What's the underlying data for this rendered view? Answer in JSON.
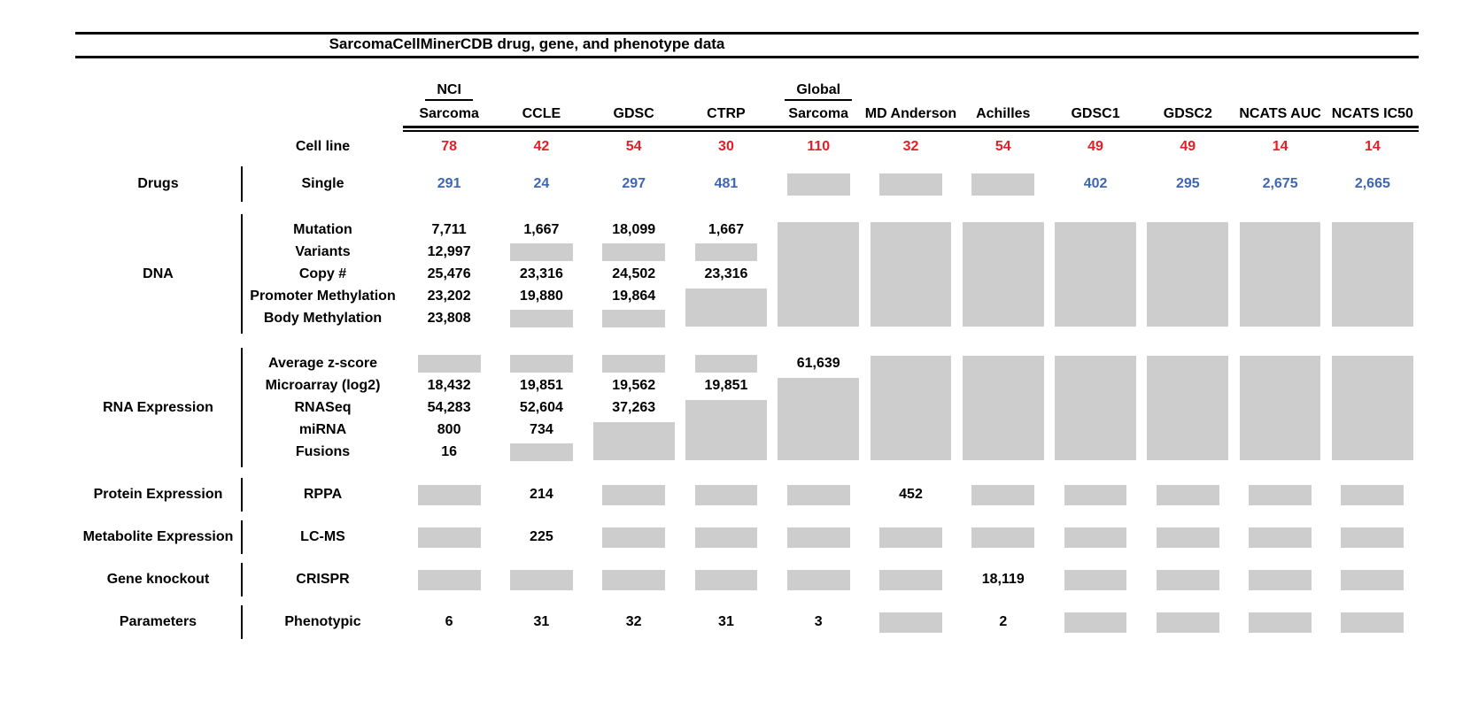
{
  "figure": {
    "title": "SarcomaCellMinerCDB drug, gene, and phenotype data"
  },
  "colors": {
    "red": "#e41e26",
    "blue": "#3e67b1",
    "gray": "#cdcdcd",
    "text": "#000000"
  },
  "header": {
    "cell_line_label": "Cell line",
    "columns": [
      {
        "top": "NCI",
        "label": "Sarcoma",
        "cell_lines": "78"
      },
      {
        "top": "",
        "label": "CCLE",
        "cell_lines": "42"
      },
      {
        "top": "",
        "label": "GDSC",
        "cell_lines": "54"
      },
      {
        "top": "",
        "label": "CTRP",
        "cell_lines": "30"
      },
      {
        "top": "Global",
        "label": "Sarcoma",
        "cell_lines": "110"
      },
      {
        "top": "",
        "label": "MD Anderson",
        "cell_lines": "32"
      },
      {
        "top": "",
        "label": "Achilles",
        "cell_lines": "54"
      },
      {
        "top": "",
        "label": "GDSC1",
        "cell_lines": "49"
      },
      {
        "top": "",
        "label": "GDSC2",
        "cell_lines": "49"
      },
      {
        "top": "",
        "label": "NCATS AUC",
        "cell_lines": "14"
      },
      {
        "top": "",
        "label": "NCATS IC50",
        "cell_lines": "14"
      }
    ]
  },
  "sections": [
    {
      "id": "drugs",
      "category": "Drugs",
      "value_color": "blue",
      "rows": [
        {
          "label": "Single",
          "cells": [
            "291",
            "24",
            "297",
            "481",
            "#1",
            "#1",
            "#1",
            "402",
            "295",
            "2,675",
            "2,665"
          ]
        }
      ]
    },
    {
      "id": "dna",
      "category": "DNA",
      "rows": [
        {
          "label": "Mutation",
          "cells": [
            "7,711",
            "1,667",
            "18,099",
            "1,667",
            "#5",
            "#5",
            "#5",
            "#5",
            "#5",
            "#5",
            "#5"
          ]
        },
        {
          "label": "Variants",
          "cells": [
            "12,997",
            "#1",
            "#1",
            "#1",
            "",
            "",
            "",
            "",
            "",
            "",
            ""
          ]
        },
        {
          "label": "Copy #",
          "cells": [
            "25,476",
            "23,316",
            "24,502",
            "23,316",
            "",
            "",
            "",
            "",
            "",
            "",
            ""
          ]
        },
        {
          "label": "Promoter Methylation",
          "cells": [
            "23,202",
            "19,880",
            "19,864",
            "#2",
            "",
            "",
            "",
            "",
            "",
            "",
            ""
          ]
        },
        {
          "label": "Body Methylation",
          "cells": [
            "23,808",
            "#1",
            "#1",
            "",
            "",
            "",
            "",
            "",
            "",
            "",
            ""
          ]
        }
      ]
    },
    {
      "id": "rna",
      "category": "RNA Expression",
      "rows": [
        {
          "label": "Average z-score",
          "cells": [
            "#1",
            "#1",
            "#1",
            "#1",
            "61,639",
            "#5",
            "#5",
            "#5",
            "#5",
            "#5",
            "#5"
          ]
        },
        {
          "label": "Microarray (log2)",
          "cells": [
            "18,432",
            "19,851",
            "19,562",
            "19,851",
            "#4",
            "",
            "",
            "",
            "",
            "",
            ""
          ]
        },
        {
          "label": "RNASeq",
          "cells": [
            "54,283",
            "52,604",
            "37,263",
            "#3",
            "",
            "",
            "",
            "",
            "",
            "",
            ""
          ]
        },
        {
          "label": "miRNA",
          "cells": [
            "800",
            "734",
            "#2",
            "",
            "",
            "",
            "",
            "",
            "",
            "",
            ""
          ]
        },
        {
          "label": "Fusions",
          "cells": [
            "16",
            "#1",
            "",
            "",
            "",
            "",
            "",
            "",
            "",
            "",
            ""
          ]
        }
      ]
    },
    {
      "id": "protein",
      "category": "Protein Expression",
      "rows": [
        {
          "label": "RPPA",
          "cells": [
            "#1",
            "214",
            "#1",
            "#1",
            "#1",
            "452",
            "#1",
            "#1",
            "#1",
            "#1",
            "#1"
          ]
        }
      ]
    },
    {
      "id": "metabolite",
      "category": "Metabolite Expression",
      "rows": [
        {
          "label": "LC-MS",
          "cells": [
            "#1",
            "225",
            "#1",
            "#1",
            "#1",
            "#1",
            "#1",
            "#1",
            "#1",
            "#1",
            "#1"
          ]
        }
      ]
    },
    {
      "id": "knockout",
      "category": "Gene knockout",
      "rows": [
        {
          "label": "CRISPR",
          "cells": [
            "#1",
            "#1",
            "#1",
            "#1",
            "#1",
            "#1",
            "18,119",
            "#1",
            "#1",
            "#1",
            "#1"
          ]
        }
      ]
    },
    {
      "id": "parameters",
      "category": "Parameters",
      "rows": [
        {
          "label": "Phenotypic",
          "cells": [
            "6",
            "31",
            "32",
            "31",
            "3",
            "#1",
            "2",
            "#1",
            "#1",
            "#1",
            "#1"
          ]
        }
      ]
    }
  ],
  "chart_data": {
    "type": "table",
    "title": "SarcomaCellMinerCDB drug, gene, and phenotype data",
    "columns": [
      "NCI Sarcoma",
      "CCLE",
      "GDSC",
      "CTRP",
      "Global Sarcoma",
      "MD Anderson",
      "Achilles",
      "GDSC1",
      "GDSC2",
      "NCATS AUC",
      "NCATS IC50"
    ],
    "cell_lines": [
      78,
      42,
      54,
      30,
      110,
      32,
      54,
      49,
      49,
      14,
      14
    ],
    "cell_lines_color": "red",
    "drug_counts_color": "blue",
    "missing_value_marker": "gray block (null)",
    "rows": [
      {
        "category": "Drugs",
        "measure": "Single",
        "values": [
          291,
          24,
          297,
          481,
          null,
          null,
          null,
          402,
          295,
          2675,
          2665
        ]
      },
      {
        "category": "DNA",
        "measure": "Mutation",
        "values": [
          7711,
          1667,
          18099,
          1667,
          null,
          null,
          null,
          null,
          null,
          null,
          null
        ]
      },
      {
        "category": "DNA",
        "measure": "Variants",
        "values": [
          12997,
          null,
          null,
          null,
          null,
          null,
          null,
          null,
          null,
          null,
          null
        ]
      },
      {
        "category": "DNA",
        "measure": "Copy #",
        "values": [
          25476,
          23316,
          24502,
          23316,
          null,
          null,
          null,
          null,
          null,
          null,
          null
        ]
      },
      {
        "category": "DNA",
        "measure": "Promoter Methylation",
        "values": [
          23202,
          19880,
          19864,
          null,
          null,
          null,
          null,
          null,
          null,
          null,
          null
        ]
      },
      {
        "category": "DNA",
        "measure": "Body Methylation",
        "values": [
          23808,
          null,
          null,
          null,
          null,
          null,
          null,
          null,
          null,
          null,
          null
        ]
      },
      {
        "category": "RNA Expression",
        "measure": "Average z-score",
        "values": [
          null,
          null,
          null,
          null,
          61639,
          null,
          null,
          null,
          null,
          null,
          null
        ]
      },
      {
        "category": "RNA Expression",
        "measure": "Microarray (log2)",
        "values": [
          18432,
          19851,
          19562,
          19851,
          null,
          null,
          null,
          null,
          null,
          null,
          null
        ]
      },
      {
        "category": "RNA Expression",
        "measure": "RNASeq",
        "values": [
          54283,
          52604,
          37263,
          null,
          null,
          null,
          null,
          null,
          null,
          null,
          null
        ]
      },
      {
        "category": "RNA Expression",
        "measure": "miRNA",
        "values": [
          800,
          734,
          null,
          null,
          null,
          null,
          null,
          null,
          null,
          null,
          null
        ]
      },
      {
        "category": "RNA Expression",
        "measure": "Fusions",
        "values": [
          16,
          null,
          null,
          null,
          null,
          null,
          null,
          null,
          null,
          null,
          null
        ]
      },
      {
        "category": "Protein Expression",
        "measure": "RPPA",
        "values": [
          null,
          214,
          null,
          null,
          null,
          452,
          null,
          null,
          null,
          null,
          null
        ]
      },
      {
        "category": "Metabolite Expression",
        "measure": "LC-MS",
        "values": [
          null,
          225,
          null,
          null,
          null,
          null,
          null,
          null,
          null,
          null,
          null
        ]
      },
      {
        "category": "Gene knockout",
        "measure": "CRISPR",
        "values": [
          null,
          null,
          null,
          null,
          null,
          null,
          18119,
          null,
          null,
          null,
          null
        ]
      },
      {
        "category": "Parameters",
        "measure": "Phenotypic",
        "values": [
          6,
          31,
          32,
          31,
          3,
          null,
          2,
          null,
          null,
          null,
          null
        ]
      }
    ]
  }
}
